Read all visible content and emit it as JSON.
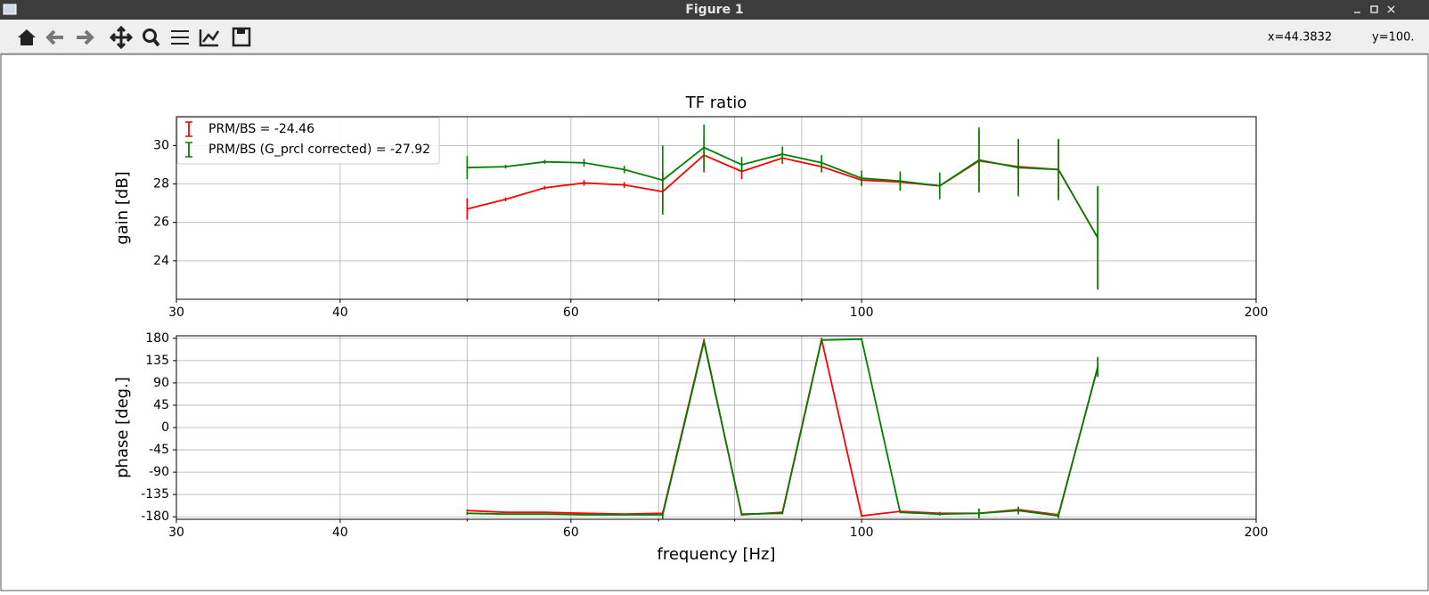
{
  "window": {
    "title": "Figure 1",
    "status_x": "x=44.3832",
    "status_y": "y=100."
  },
  "chart_data": [
    {
      "type": "errorbar",
      "title": "TF ratio",
      "ylabel": "gain [dB]",
      "log_x": true,
      "grid": true,
      "legend": "upper left",
      "xlim": [
        30,
        200
      ],
      "xticks": [
        30,
        40,
        60,
        100,
        200
      ],
      "xminorticks": [
        50,
        70,
        80,
        90
      ],
      "ylim": [
        22,
        31.5
      ],
      "yticks": [
        24,
        26,
        28,
        30
      ],
      "x": [
        50,
        53.5,
        57.3,
        61.4,
        65.9,
        70.5,
        75.8,
        81,
        87,
        93.2,
        100,
        107,
        114.7,
        122.9,
        131.7,
        141.3,
        151.4
      ],
      "series": [
        {
          "name": "PRM/BS = -24.46",
          "color": "#ff0000",
          "values": [
            26.7,
            27.2,
            27.8,
            28.05,
            27.95,
            27.6,
            29.5,
            28.65,
            29.35,
            28.9,
            28.2,
            28.1,
            27.9,
            29.2,
            28.9,
            28.75,
            25.2
          ],
          "errors": [
            0.55,
            0.1,
            0.1,
            0.15,
            0.15,
            1.0,
            0.9,
            0.4,
            0.3,
            0.3,
            0.3,
            0.4,
            0.4,
            1.6,
            1.4,
            1.5,
            2.6
          ]
        },
        {
          "name": "PRM/BS (G_prcl corrected) = -27.92",
          "color": "#008000",
          "values": [
            28.85,
            28.9,
            29.15,
            29.1,
            28.75,
            28.2,
            29.9,
            29.0,
            29.55,
            29.1,
            28.3,
            28.15,
            27.9,
            29.25,
            28.85,
            28.75,
            25.2
          ],
          "errors": [
            0.6,
            0.1,
            0.1,
            0.2,
            0.2,
            1.8,
            1.2,
            0.4,
            0.4,
            0.4,
            0.4,
            0.5,
            0.7,
            1.7,
            1.5,
            1.6,
            2.7
          ]
        }
      ]
    },
    {
      "type": "errorbar",
      "xlabel": "frequency [Hz]",
      "ylabel": "phase [deg.]",
      "log_x": true,
      "grid": true,
      "xlim": [
        30,
        200
      ],
      "xticks": [
        30,
        40,
        60,
        100,
        200
      ],
      "xminorticks": [
        50,
        70,
        80,
        90
      ],
      "ylim": [
        -185,
        185
      ],
      "yticks": [
        -180,
        -135,
        -90,
        -45,
        0,
        45,
        90,
        135,
        180
      ],
      "x": [
        50,
        53.5,
        57.3,
        61.4,
        65.9,
        70.5,
        75.8,
        81,
        87,
        93.2,
        100,
        107,
        114.7,
        122.9,
        131.7,
        141.3,
        151.4
      ],
      "series": [
        {
          "color": "#ff0000",
          "values": [
            -167.4,
            -171,
            -171,
            -173,
            -174.6,
            -173,
            176,
            -176,
            -171,
            178,
            -178,
            -169,
            -173,
            -173,
            -165.6,
            -176,
            120.6
          ],
          "errors": [
            2,
            1,
            1,
            1,
            1,
            5,
            3,
            2,
            2,
            3,
            2,
            2,
            3,
            8,
            6,
            5,
            18
          ]
        },
        {
          "color": "#008000",
          "values": [
            -173,
            -174.6,
            -174.6,
            -176,
            -176,
            -176,
            172.8,
            -174.6,
            -173,
            176.4,
            178.2,
            -171,
            -174.6,
            -173,
            -167.4,
            -178,
            122.4
          ],
          "errors": [
            3,
            1,
            1,
            1,
            1,
            8,
            3,
            2,
            2,
            3,
            2,
            2,
            3,
            10,
            8,
            5,
            20
          ]
        }
      ]
    }
  ]
}
